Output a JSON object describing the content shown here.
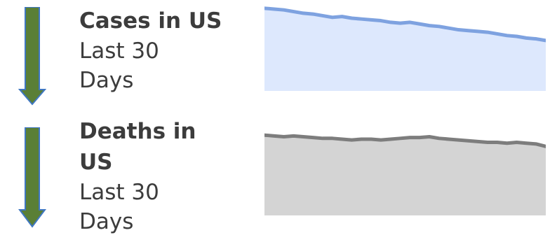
{
  "colors": {
    "arrow_fill": "#5a7f36",
    "arrow_stroke": "#3f77c2",
    "cases_line": "#7ea2e0",
    "cases_area": "#dde8fd",
    "deaths_line": "#7d7d7d",
    "deaths_area": "#d4d4d4",
    "text": "#3c3c3c"
  },
  "rows": [
    {
      "title": "Cases in US",
      "subtitle_line1": "Last 30",
      "subtitle_line2": "Days",
      "trend_icon": "down-arrow-icon"
    },
    {
      "title_line1": "Deaths in",
      "title_line2": "US",
      "subtitle_line1": "Last 30",
      "subtitle_line2": "Days",
      "trend_icon": "down-arrow-icon"
    }
  ],
  "chart_data": [
    {
      "type": "area",
      "title": "Cases in US",
      "x": [
        1,
        2,
        3,
        4,
        5,
        6,
        7,
        8,
        9,
        10,
        11,
        12,
        13,
        14,
        15,
        16,
        17,
        18,
        19,
        20,
        21,
        22,
        23,
        24,
        25,
        26,
        27,
        28,
        29,
        30
      ],
      "values": [
        100,
        99,
        98,
        96,
        94,
        93,
        91,
        89,
        90,
        88,
        87,
        86,
        85,
        83,
        82,
        83,
        81,
        79,
        78,
        76,
        74,
        73,
        72,
        71,
        69,
        67,
        66,
        64,
        63,
        61
      ],
      "ylim": [
        0,
        110
      ],
      "grid": false
    },
    {
      "type": "area",
      "title": "Deaths in US",
      "x": [
        1,
        2,
        3,
        4,
        5,
        6,
        7,
        8,
        9,
        10,
        11,
        12,
        13,
        14,
        15,
        16,
        17,
        18,
        19,
        20,
        21,
        22,
        23,
        24,
        25,
        26,
        27,
        28,
        29,
        30
      ],
      "values": [
        100,
        99,
        98,
        99,
        98,
        97,
        96,
        96,
        95,
        94,
        95,
        95,
        94,
        95,
        96,
        97,
        97,
        98,
        96,
        95,
        94,
        93,
        92,
        91,
        91,
        90,
        91,
        90,
        89,
        86
      ],
      "ylim": [
        0,
        115
      ],
      "grid": false
    }
  ]
}
